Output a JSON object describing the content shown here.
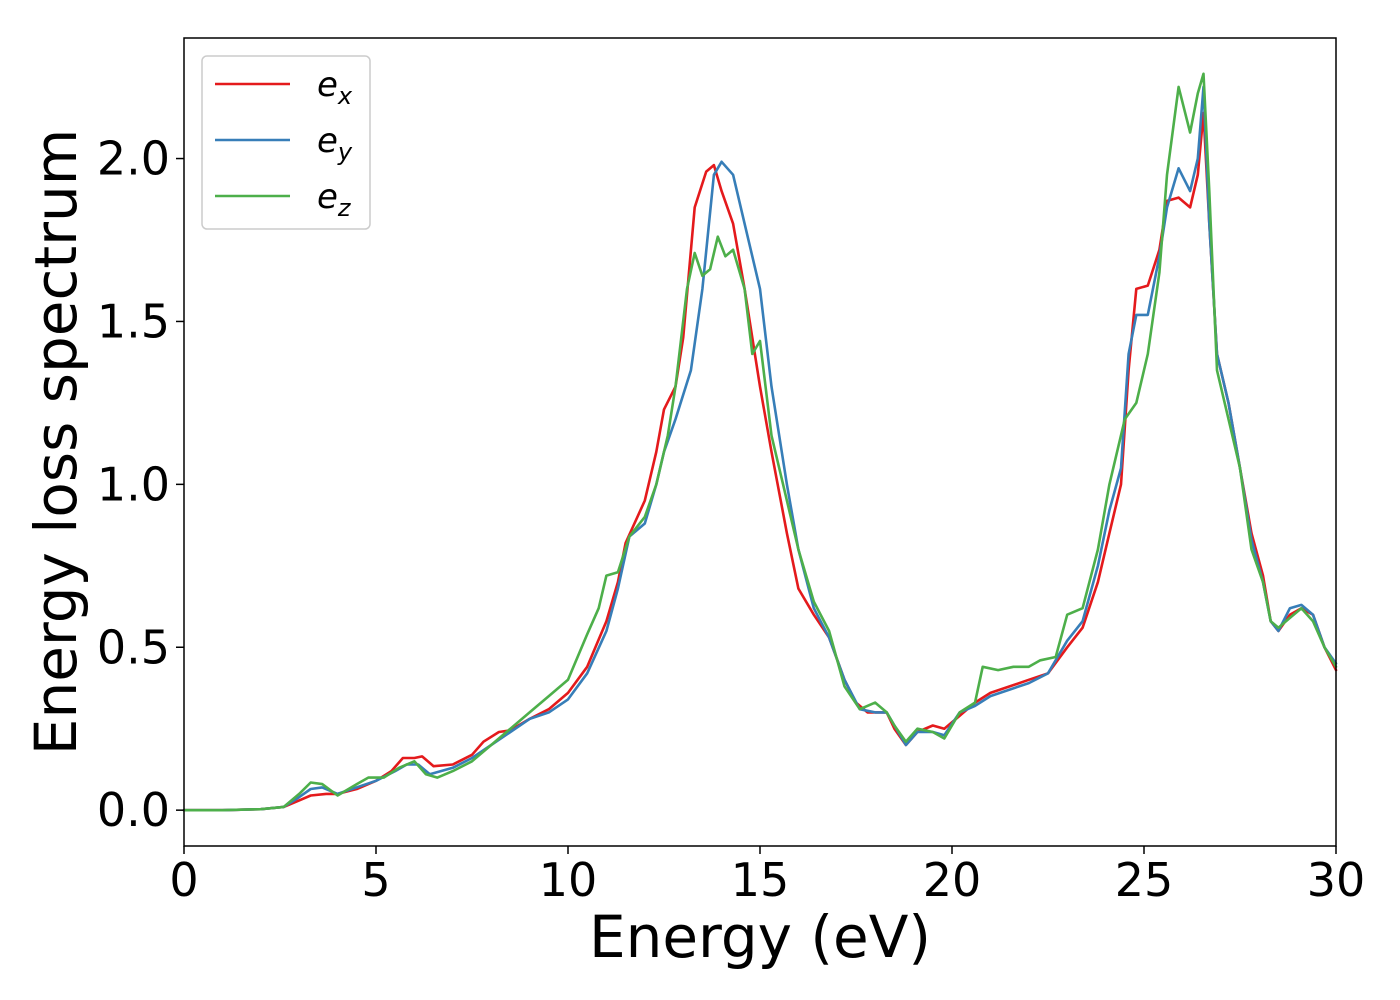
{
  "chart_data": {
    "type": "line",
    "xlabel": "Energy (eV)",
    "ylabel": "Energy loss spectrum",
    "xlim": [
      0,
      30
    ],
    "ylim": [
      -0.11,
      2.37
    ],
    "x_ticks": [
      "0",
      "5",
      "10",
      "15",
      "20",
      "25",
      "30"
    ],
    "x_tick_values": [
      0,
      5,
      10,
      15,
      20,
      25,
      30
    ],
    "y_ticks": [
      "0.0",
      "0.5",
      "1.0",
      "1.5",
      "2.0"
    ],
    "y_tick_values": [
      0.0,
      0.5,
      1.0,
      1.5,
      2.0
    ],
    "grid": false,
    "legend_position": "upper-left",
    "series": [
      {
        "name": "e_x",
        "label_main": "e",
        "label_sub": "x",
        "color": "#e41a1c",
        "points": [
          [
            0,
            0
          ],
          [
            1,
            0
          ],
          [
            2,
            0.003
          ],
          [
            2.6,
            0.01
          ],
          [
            3,
            0.03
          ],
          [
            3.3,
            0.045
          ],
          [
            3.7,
            0.05
          ],
          [
            4,
            0.05
          ],
          [
            4.5,
            0.065
          ],
          [
            5,
            0.09
          ],
          [
            5.4,
            0.12
          ],
          [
            5.7,
            0.16
          ],
          [
            6,
            0.16
          ],
          [
            6.2,
            0.165
          ],
          [
            6.5,
            0.135
          ],
          [
            7,
            0.14
          ],
          [
            7.5,
            0.17
          ],
          [
            7.8,
            0.21
          ],
          [
            8.2,
            0.24
          ],
          [
            8.5,
            0.245
          ],
          [
            9,
            0.28
          ],
          [
            9.5,
            0.31
          ],
          [
            10,
            0.36
          ],
          [
            10.5,
            0.44
          ],
          [
            11,
            0.58
          ],
          [
            11.3,
            0.7
          ],
          [
            11.5,
            0.82
          ],
          [
            12,
            0.95
          ],
          [
            12.3,
            1.1
          ],
          [
            12.5,
            1.23
          ],
          [
            12.8,
            1.3
          ],
          [
            13,
            1.45
          ],
          [
            13.3,
            1.85
          ],
          [
            13.6,
            1.96
          ],
          [
            13.8,
            1.98
          ],
          [
            14,
            1.9
          ],
          [
            14.3,
            1.8
          ],
          [
            14.6,
            1.6
          ],
          [
            15,
            1.3
          ],
          [
            15.3,
            1.1
          ],
          [
            15.7,
            0.85
          ],
          [
            16,
            0.68
          ],
          [
            16.4,
            0.6
          ],
          [
            16.8,
            0.53
          ],
          [
            17.2,
            0.4
          ],
          [
            17.5,
            0.33
          ],
          [
            17.8,
            0.3
          ],
          [
            18,
            0.3
          ],
          [
            18.3,
            0.3
          ],
          [
            18.5,
            0.25
          ],
          [
            18.8,
            0.2
          ],
          [
            19.1,
            0.24
          ],
          [
            19.5,
            0.26
          ],
          [
            19.8,
            0.25
          ],
          [
            20.2,
            0.29
          ],
          [
            20.6,
            0.33
          ],
          [
            21,
            0.36
          ],
          [
            21.5,
            0.38
          ],
          [
            22,
            0.4
          ],
          [
            22.5,
            0.42
          ],
          [
            23,
            0.5
          ],
          [
            23.4,
            0.56
          ],
          [
            23.8,
            0.7
          ],
          [
            24.1,
            0.85
          ],
          [
            24.4,
            1.0
          ],
          [
            24.6,
            1.35
          ],
          [
            24.8,
            1.6
          ],
          [
            25.1,
            1.61
          ],
          [
            25.4,
            1.72
          ],
          [
            25.6,
            1.87
          ],
          [
            25.9,
            1.88
          ],
          [
            26.2,
            1.85
          ],
          [
            26.4,
            1.95
          ],
          [
            26.55,
            2.14
          ],
          [
            26.7,
            1.8
          ],
          [
            26.9,
            1.4
          ],
          [
            27.2,
            1.25
          ],
          [
            27.5,
            1.05
          ],
          [
            27.8,
            0.85
          ],
          [
            28.1,
            0.72
          ],
          [
            28.3,
            0.58
          ],
          [
            28.5,
            0.55
          ],
          [
            28.8,
            0.6
          ],
          [
            29.1,
            0.62
          ],
          [
            29.4,
            0.6
          ],
          [
            29.7,
            0.5
          ],
          [
            30,
            0.43
          ]
        ]
      },
      {
        "name": "e_y",
        "label_main": "e",
        "label_sub": "y",
        "color": "#377eb8",
        "points": [
          [
            0,
            0
          ],
          [
            1,
            0
          ],
          [
            2,
            0.003
          ],
          [
            2.6,
            0.01
          ],
          [
            3,
            0.04
          ],
          [
            3.3,
            0.065
          ],
          [
            3.6,
            0.07
          ],
          [
            4,
            0.05
          ],
          [
            4.5,
            0.07
          ],
          [
            5,
            0.09
          ],
          [
            5.5,
            0.12
          ],
          [
            5.8,
            0.14
          ],
          [
            6.1,
            0.14
          ],
          [
            6.4,
            0.11
          ],
          [
            7,
            0.13
          ],
          [
            7.5,
            0.16
          ],
          [
            8,
            0.2
          ],
          [
            8.5,
            0.24
          ],
          [
            9,
            0.28
          ],
          [
            9.5,
            0.3
          ],
          [
            10,
            0.34
          ],
          [
            10.5,
            0.42
          ],
          [
            11,
            0.55
          ],
          [
            11.3,
            0.68
          ],
          [
            11.6,
            0.84
          ],
          [
            12,
            0.88
          ],
          [
            12.3,
            1.0
          ],
          [
            12.5,
            1.1
          ],
          [
            12.8,
            1.2
          ],
          [
            13.2,
            1.35
          ],
          [
            13.5,
            1.6
          ],
          [
            13.8,
            1.95
          ],
          [
            14,
            1.99
          ],
          [
            14.3,
            1.95
          ],
          [
            14.6,
            1.8
          ],
          [
            15,
            1.6
          ],
          [
            15.3,
            1.3
          ],
          [
            15.7,
            1.0
          ],
          [
            16,
            0.8
          ],
          [
            16.4,
            0.62
          ],
          [
            16.8,
            0.53
          ],
          [
            17.2,
            0.4
          ],
          [
            17.6,
            0.31
          ],
          [
            18,
            0.3
          ],
          [
            18.3,
            0.3
          ],
          [
            18.5,
            0.26
          ],
          [
            18.8,
            0.2
          ],
          [
            19.1,
            0.24
          ],
          [
            19.5,
            0.24
          ],
          [
            19.8,
            0.23
          ],
          [
            20.2,
            0.3
          ],
          [
            20.6,
            0.32
          ],
          [
            21,
            0.35
          ],
          [
            21.5,
            0.37
          ],
          [
            22,
            0.39
          ],
          [
            22.5,
            0.42
          ],
          [
            23,
            0.52
          ],
          [
            23.4,
            0.58
          ],
          [
            23.8,
            0.75
          ],
          [
            24.1,
            0.92
          ],
          [
            24.4,
            1.05
          ],
          [
            24.6,
            1.4
          ],
          [
            24.8,
            1.52
          ],
          [
            25.1,
            1.52
          ],
          [
            25.4,
            1.7
          ],
          [
            25.6,
            1.85
          ],
          [
            25.9,
            1.97
          ],
          [
            26.2,
            1.9
          ],
          [
            26.4,
            2.0
          ],
          [
            26.55,
            2.22
          ],
          [
            26.7,
            1.8
          ],
          [
            26.9,
            1.4
          ],
          [
            27.2,
            1.25
          ],
          [
            27.5,
            1.05
          ],
          [
            27.8,
            0.83
          ],
          [
            28.1,
            0.7
          ],
          [
            28.3,
            0.58
          ],
          [
            28.5,
            0.55
          ],
          [
            28.8,
            0.62
          ],
          [
            29.1,
            0.63
          ],
          [
            29.4,
            0.6
          ],
          [
            29.7,
            0.5
          ],
          [
            30,
            0.45
          ]
        ]
      },
      {
        "name": "e_z",
        "label_main": "e",
        "label_sub": "z",
        "color": "#4daf4a",
        "points": [
          [
            0,
            0
          ],
          [
            1,
            0
          ],
          [
            2,
            0.003
          ],
          [
            2.6,
            0.01
          ],
          [
            3,
            0.05
          ],
          [
            3.3,
            0.085
          ],
          [
            3.6,
            0.08
          ],
          [
            4,
            0.045
          ],
          [
            4.5,
            0.08
          ],
          [
            4.8,
            0.1
          ],
          [
            5.2,
            0.1
          ],
          [
            5.6,
            0.13
          ],
          [
            6,
            0.15
          ],
          [
            6.3,
            0.11
          ],
          [
            6.6,
            0.1
          ],
          [
            7,
            0.12
          ],
          [
            7.5,
            0.15
          ],
          [
            8,
            0.2
          ],
          [
            8.5,
            0.25
          ],
          [
            9,
            0.3
          ],
          [
            9.5,
            0.35
          ],
          [
            10,
            0.4
          ],
          [
            10.5,
            0.54
          ],
          [
            10.8,
            0.62
          ],
          [
            11,
            0.72
          ],
          [
            11.3,
            0.73
          ],
          [
            11.6,
            0.84
          ],
          [
            12,
            0.9
          ],
          [
            12.3,
            1.0
          ],
          [
            12.6,
            1.15
          ],
          [
            12.8,
            1.3
          ],
          [
            13.1,
            1.6
          ],
          [
            13.3,
            1.71
          ],
          [
            13.5,
            1.64
          ],
          [
            13.7,
            1.66
          ],
          [
            13.9,
            1.76
          ],
          [
            14.1,
            1.7
          ],
          [
            14.3,
            1.72
          ],
          [
            14.6,
            1.6
          ],
          [
            14.8,
            1.4
          ],
          [
            15,
            1.44
          ],
          [
            15.3,
            1.15
          ],
          [
            15.7,
            0.95
          ],
          [
            16,
            0.8
          ],
          [
            16.4,
            0.64
          ],
          [
            16.8,
            0.55
          ],
          [
            17.2,
            0.38
          ],
          [
            17.6,
            0.31
          ],
          [
            18,
            0.33
          ],
          [
            18.3,
            0.3
          ],
          [
            18.5,
            0.26
          ],
          [
            18.8,
            0.21
          ],
          [
            19.1,
            0.25
          ],
          [
            19.5,
            0.24
          ],
          [
            19.8,
            0.22
          ],
          [
            20.2,
            0.3
          ],
          [
            20.6,
            0.33
          ],
          [
            20.8,
            0.44
          ],
          [
            21.2,
            0.43
          ],
          [
            21.6,
            0.44
          ],
          [
            22,
            0.44
          ],
          [
            22.3,
            0.46
          ],
          [
            22.7,
            0.47
          ],
          [
            23,
            0.6
          ],
          [
            23.4,
            0.62
          ],
          [
            23.8,
            0.8
          ],
          [
            24.1,
            1.0
          ],
          [
            24.5,
            1.2
          ],
          [
            24.8,
            1.25
          ],
          [
            25.1,
            1.4
          ],
          [
            25.4,
            1.65
          ],
          [
            25.6,
            1.95
          ],
          [
            25.9,
            2.22
          ],
          [
            26.2,
            2.08
          ],
          [
            26.4,
            2.2
          ],
          [
            26.55,
            2.26
          ],
          [
            26.7,
            1.9
          ],
          [
            26.9,
            1.35
          ],
          [
            27.2,
            1.2
          ],
          [
            27.5,
            1.05
          ],
          [
            27.8,
            0.8
          ],
          [
            28.1,
            0.7
          ],
          [
            28.3,
            0.58
          ],
          [
            28.5,
            0.56
          ],
          [
            28.8,
            0.59
          ],
          [
            29.1,
            0.62
          ],
          [
            29.4,
            0.58
          ],
          [
            29.7,
            0.5
          ],
          [
            30,
            0.44
          ]
        ]
      }
    ]
  }
}
